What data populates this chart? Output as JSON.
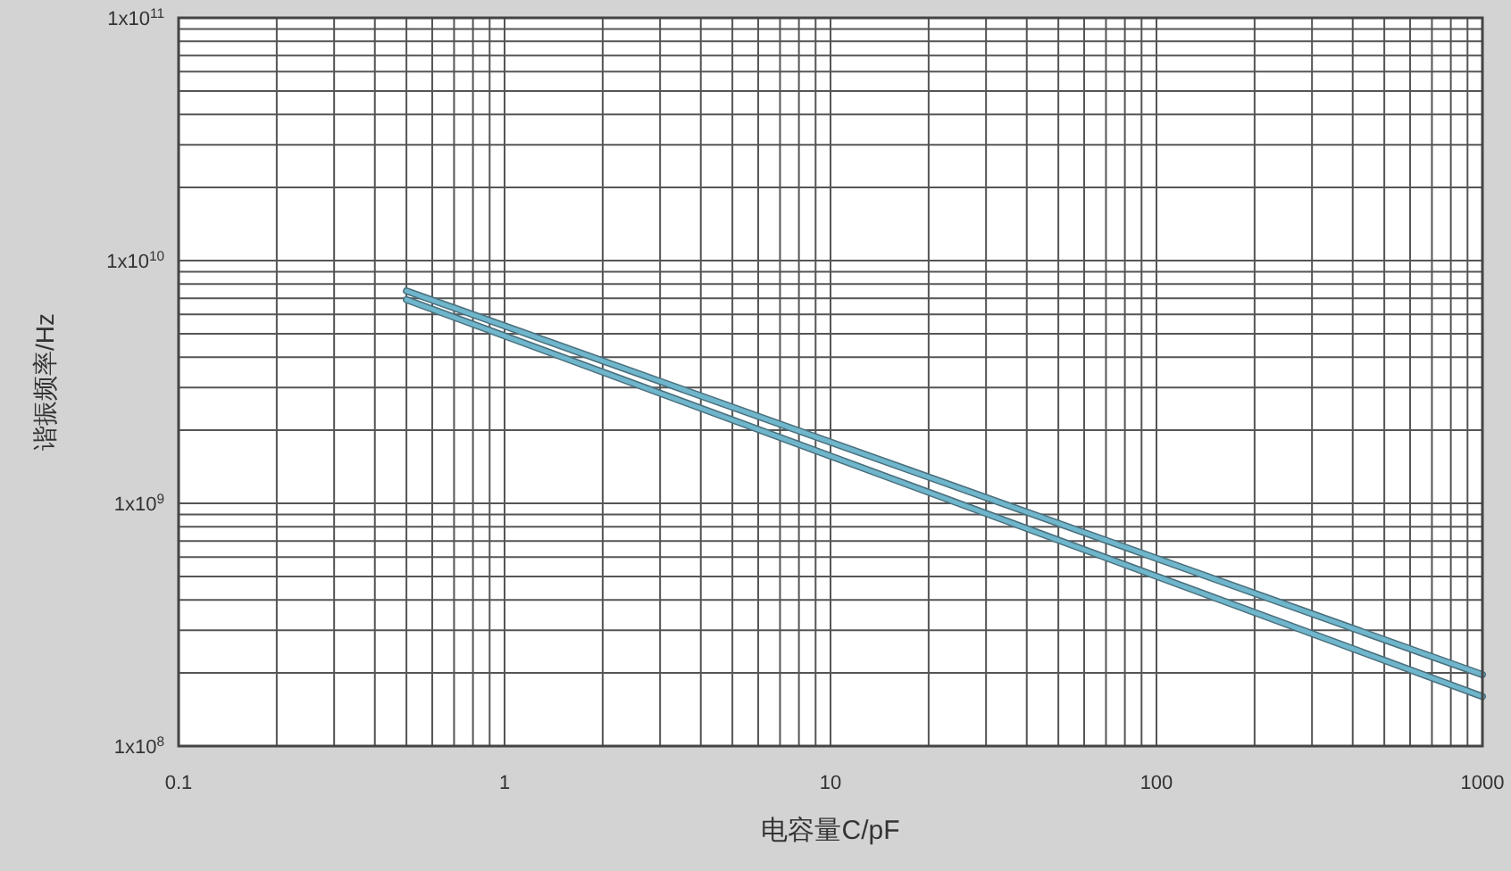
{
  "chart_data": {
    "type": "line",
    "xlabel": "电容量C/pF",
    "ylabel": "谐振频率/Hz",
    "log": "xy",
    "grid": true,
    "xlim": [
      0.1,
      1000
    ],
    "xticks": [
      0.1,
      1,
      10,
      100,
      1000
    ],
    "ylim": [
      100000000,
      100000000000
    ],
    "yticks": [
      {
        "value": 100000000,
        "label": "1x10$^{8}$"
      },
      {
        "value": 1000000000,
        "label": "1x10$^{9}$"
      },
      {
        "value": 10000000000,
        "label": "1x10$^{10}$"
      },
      {
        "value": 100000000000,
        "label": "1x10$^{11}$"
      }
    ],
    "x": [
      0.5,
      1000
    ],
    "series": [
      {
        "color": "#6fb6cc",
        "values": [
          7500000000,
          197000000
        ]
      },
      {
        "color": "#6fb6cc",
        "values": [
          6900000000,
          160000000
        ]
      }
    ]
  }
}
